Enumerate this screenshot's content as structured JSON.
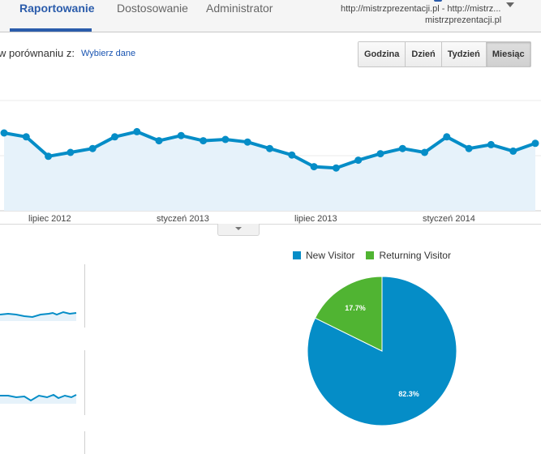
{
  "nav": {
    "tabs": [
      {
        "label": "Raportowanie",
        "active": true
      },
      {
        "label": "Dostosowanie",
        "active": false
      },
      {
        "label": "Administrator",
        "active": false
      }
    ],
    "account_line1": "http://mistrzprezentacji.pl - http://mistrz...",
    "account_line2": "mistrzprezentacji.pl"
  },
  "compare": {
    "label": "w porównaniu z:",
    "link": "Wybierz dane"
  },
  "granularity_buttons": [
    {
      "label": "Godzina",
      "active": false
    },
    {
      "label": "Dzień",
      "active": false
    },
    {
      "label": "Tydzień",
      "active": false
    },
    {
      "label": "Miesiąc",
      "active": true
    }
  ],
  "colors": {
    "accent": "#2b5cab",
    "line": "#058dc7",
    "new_visitor": "#058dc7",
    "returning_visitor": "#50b432"
  },
  "chart_data": [
    {
      "type": "line",
      "x_tick_labels": [
        "lipiec 2012",
        "styczeń 2013",
        "lipiec 2013",
        "styczeń 2014"
      ],
      "values": [
        60,
        57,
        42,
        45,
        48,
        57,
        61,
        54,
        58,
        54,
        55,
        53,
        48,
        43,
        34,
        33,
        39,
        44,
        48,
        45,
        57,
        48,
        51,
        46,
        52
      ],
      "ylim": [
        0,
        100
      ]
    },
    {
      "type": "pie",
      "legend": [
        "New Visitor",
        "Returning Visitor"
      ],
      "slices": [
        {
          "name": "New Visitor",
          "value": 82.3,
          "label": "82.3%"
        },
        {
          "name": "Returning Visitor",
          "value": 17.7,
          "label": "17.7%"
        }
      ]
    }
  ]
}
